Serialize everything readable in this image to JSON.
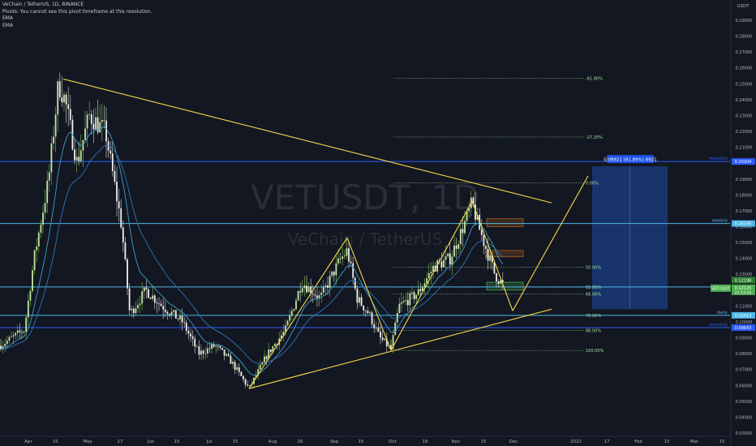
{
  "header": {
    "symbol_line": "VeChain / TetherUS, 1D, BINANCE",
    "pivots_note": "Pivots: You cannot see this pivot timeframe at this resolution.",
    "ema1": "EMA",
    "ema2": "EMA"
  },
  "watermark": {
    "ticker": "VETUSDT, 1D",
    "name": "VeChain / TetherUS"
  },
  "colors": {
    "background": "#131722",
    "up": "#c5e6a6",
    "down": "#f0f0f0",
    "trendline": "#f5d94a",
    "level_blue": "#2d5cff",
    "level_cyan": "#4fb6e6",
    "ema_fast": "#3fa0c8",
    "ema_slow": "#2f74b8",
    "fib": "#a0e0a0",
    "projection_box": "#1a3a78",
    "price_tag": "#4caf50",
    "axis_text": "#b2b5be"
  },
  "chart_data": {
    "type": "candlestick",
    "title": "VeChain / TetherUS, 1D, BINANCE",
    "y_axis": {
      "label": "USDT",
      "range": [
        0.03,
        0.3
      ],
      "ticks": [
        "0.29000",
        "0.28000",
        "0.27000",
        "0.26000",
        "0.25000",
        "0.24000",
        "0.23000",
        "0.22000",
        "0.21000",
        "0.20000",
        "0.19000",
        "0.18000",
        "0.17000",
        "0.16000",
        "0.15000",
        "0.14000",
        "0.13000",
        "0.12000",
        "0.11000",
        "0.10000",
        "0.09000",
        "0.08000",
        "0.07000",
        "0.06000",
        "0.05000",
        "0.04000",
        "0.03000"
      ]
    },
    "x_axis": {
      "ticks": [
        "Apr",
        "15",
        "May",
        "17",
        "Jun",
        "15",
        "Jul",
        "15",
        "Aug",
        "16",
        "Sep",
        "15",
        "Oct",
        "18",
        "Nov",
        "15",
        "Dec",
        "2022",
        "17",
        "Feb",
        "15",
        "Mar",
        "15"
      ]
    },
    "price_path": [
      [
        0,
        0.085
      ],
      [
        30,
        0.095
      ],
      [
        42,
        0.14
      ],
      [
        60,
        0.19
      ],
      [
        72,
        0.25
      ],
      [
        80,
        0.24
      ],
      [
        95,
        0.2
      ],
      [
        110,
        0.23
      ],
      [
        130,
        0.22
      ],
      [
        150,
        0.16
      ],
      [
        160,
        0.105
      ],
      [
        180,
        0.12
      ],
      [
        200,
        0.11
      ],
      [
        225,
        0.1
      ],
      [
        245,
        0.08
      ],
      [
        265,
        0.085
      ],
      [
        285,
        0.075
      ],
      [
        307,
        0.058
      ],
      [
        330,
        0.08
      ],
      [
        352,
        0.095
      ],
      [
        372,
        0.125
      ],
      [
        395,
        0.115
      ],
      [
        418,
        0.138
      ],
      [
        428,
        0.145
      ],
      [
        440,
        0.115
      ],
      [
        455,
        0.105
      ],
      [
        468,
        0.09
      ],
      [
        482,
        0.083
      ],
      [
        492,
        0.11
      ],
      [
        515,
        0.118
      ],
      [
        535,
        0.135
      ],
      [
        555,
        0.14
      ],
      [
        575,
        0.165
      ],
      [
        582,
        0.175
      ],
      [
        590,
        0.16
      ],
      [
        600,
        0.145
      ],
      [
        610,
        0.13
      ],
      [
        622,
        0.122
      ]
    ],
    "current_price": {
      "label": "VETUSDT",
      "value": "0.12125",
      "price_tag_top": "0.12198",
      "price_tag_bottom": "21:13:35"
    },
    "levels": [
      {
        "name": "monthly",
        "price": 0.20104,
        "label": "0.20104",
        "color": "#2d5cff"
      },
      {
        "name": "weekly",
        "price": 0.16195,
        "label": "0.16195",
        "color": "#4fb6e6"
      },
      {
        "name": "current",
        "price": 0.122,
        "label": "",
        "color": "#4fb6e6"
      },
      {
        "name": "daily",
        "price": 0.10413,
        "label": "0.10413",
        "color": "#4fb6e6"
      },
      {
        "name": "monthly",
        "price": 0.09643,
        "label": "0.09643",
        "color": "#2d5cff"
      }
    ],
    "fib_levels": [
      {
        "label": "-61.80%",
        "price": 0.2535,
        "x_start": 485
      },
      {
        "label": "-27.20%",
        "price": 0.2165,
        "x_start": 485
      },
      {
        "label": "0.00%",
        "price": 0.1875,
        "x_start": 485
      },
      {
        "label": "50.00%",
        "price": 0.1345,
        "x_start": 485
      },
      {
        "label": "61.80%",
        "price": 0.122,
        "x_start": 485
      },
      {
        "label": "66.00%",
        "price": 0.1175,
        "x_start": 485
      },
      {
        "label": "78.60%",
        "price": 0.104,
        "x_start": 485
      },
      {
        "label": "88.00%",
        "price": 0.0945,
        "x_start": 485
      },
      {
        "label": "100.00%",
        "price": 0.082,
        "x_start": 485
      }
    ],
    "trendlines": [
      {
        "from": [
          78,
          0.253
        ],
        "to": [
          680,
          0.175
        ]
      },
      {
        "from": [
          307,
          0.058
        ],
        "to": [
          680,
          0.108
        ]
      },
      {
        "from": [
          307,
          0.058
        ],
        "to": [
          428,
          0.153
        ]
      },
      {
        "from": [
          428,
          0.153
        ],
        "to": [
          482,
          0.082
        ]
      },
      {
        "from": [
          482,
          0.082
        ],
        "to": [
          582,
          0.176
        ]
      },
      {
        "from": [
          582,
          0.176
        ],
        "to": [
          632,
          0.107
        ]
      },
      {
        "from": [
          632,
          0.107
        ],
        "to": [
          725,
          0.192
        ]
      }
    ],
    "projection": {
      "label": "0.08921 (81.89%) 8921",
      "x0": 730,
      "x1": 823,
      "price_top": 0.198,
      "price_bottom": 0.108
    },
    "zones": [
      {
        "x0": 600,
        "x1": 645,
        "p0": 0.165,
        "p1": 0.16,
        "color": "#b5651d"
      },
      {
        "x0": 600,
        "x1": 645,
        "p0": 0.145,
        "p1": 0.141,
        "color": "#b5651d"
      },
      {
        "x0": 600,
        "x1": 645,
        "p0": 0.125,
        "p1": 0.12,
        "color": "#4caf50"
      }
    ]
  }
}
